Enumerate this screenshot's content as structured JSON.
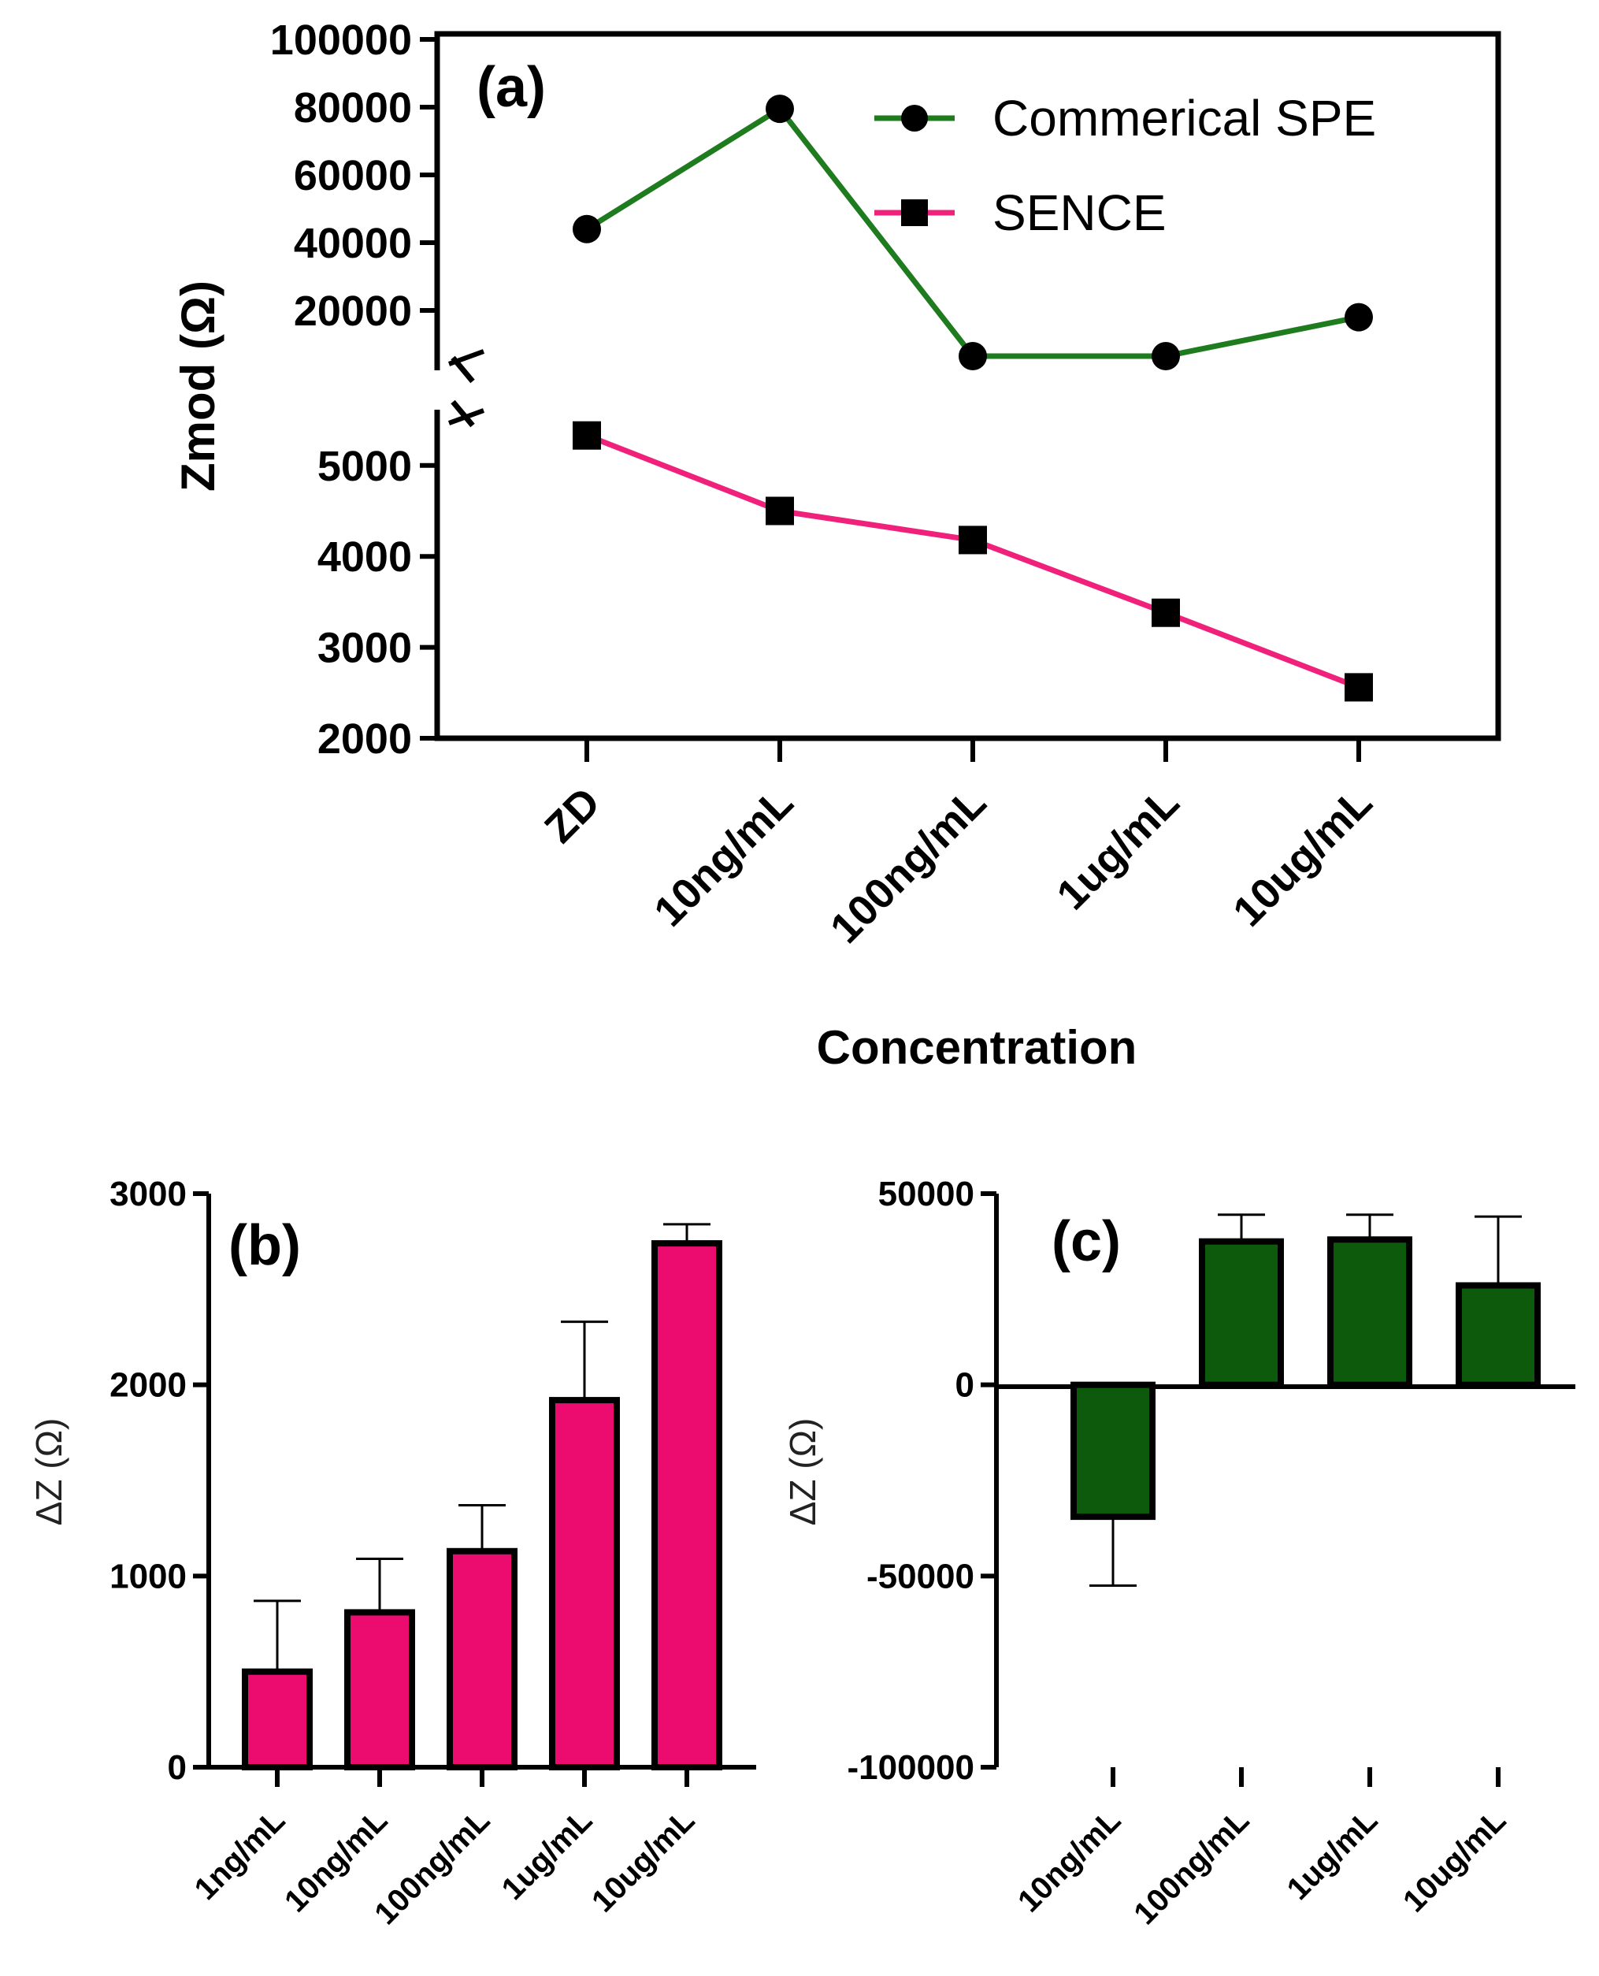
{
  "colors": {
    "commercial": "#1e7b1e",
    "sence_line": "#f0217a",
    "bar_b": "#ec0b6f",
    "bar_c": "#0d5a0d",
    "axis": "#000000"
  },
  "chart_data": [
    {
      "type": "line",
      "panel_label": "(a)",
      "title": "",
      "xlabel": "Concentration",
      "ylabel": "Zmod (Ω)",
      "categories": [
        "ZD",
        "10ng/mL",
        "100ng/mL",
        "1ug/mL",
        "10ug/mL"
      ],
      "axis_break": true,
      "upper_ylim": [
        0,
        100000
      ],
      "upper_yticks": [
        "100000",
        "80000",
        "60000",
        "40000",
        "20000"
      ],
      "lower_ylim": [
        2000,
        5700
      ],
      "lower_yticks": [
        "5000",
        "4000",
        "3000",
        "2000"
      ],
      "legend_position": "top-right",
      "series": [
        {
          "name": "Commerical SPE",
          "marker": "circle",
          "segment": "upper",
          "values": [
            44000,
            79500,
            6500,
            6500,
            18000
          ]
        },
        {
          "name": "SENCE",
          "marker": "square",
          "segment": "lower",
          "values": [
            5330,
            4500,
            4180,
            3380,
            2560
          ]
        }
      ]
    },
    {
      "type": "bar",
      "panel_label": "(b)",
      "xlabel": "",
      "ylabel": "ΔZ (Ω)",
      "categories": [
        "1ng/mL",
        "10ng/mL",
        "100ng/mL",
        "1ug/mL",
        "10ug/mL"
      ],
      "values": [
        500,
        810,
        1130,
        1920,
        2740
      ],
      "error_upper": [
        870,
        1090,
        1370,
        2330,
        2840
      ],
      "ylim": [
        0,
        3000
      ],
      "yticks": [
        "3000",
        "2000",
        "1000",
        "0"
      ]
    },
    {
      "type": "bar",
      "panel_label": "(c)",
      "xlabel": "",
      "ylabel": "ΔZ (Ω)",
      "categories": [
        "10ng/mL",
        "100ng/mL",
        "1ug/mL",
        "10ug/mL"
      ],
      "values": [
        -34500,
        37500,
        38000,
        26000
      ],
      "error_end": [
        -52500,
        44500,
        44500,
        44000
      ],
      "ylim": [
        -100000,
        50000
      ],
      "yticks": [
        "50000",
        "0",
        "-50000",
        "-100000"
      ]
    }
  ]
}
